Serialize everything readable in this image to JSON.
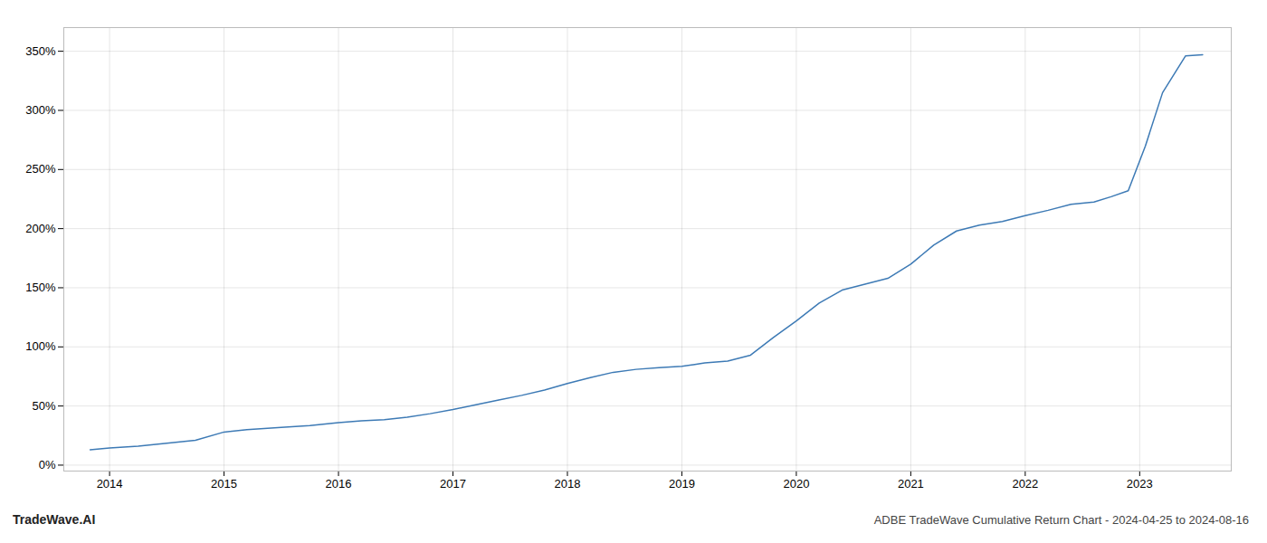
{
  "chart_data": {
    "type": "line",
    "title": "ADBE TradeWave Cumulative Return Chart - 2024-04-25 to 2024-08-16",
    "annotations": [
      "TradeWave.AI"
    ],
    "color": "#3d7ab5",
    "grid": true,
    "x": [
      2013.83,
      2014.0,
      2014.25,
      2014.5,
      2014.75,
      2015.0,
      2015.2,
      2015.5,
      2015.75,
      2016.0,
      2016.2,
      2016.4,
      2016.6,
      2016.8,
      2017.0,
      2017.2,
      2017.4,
      2017.6,
      2017.8,
      2018.0,
      2018.2,
      2018.4,
      2018.6,
      2018.8,
      2019.0,
      2019.1,
      2019.2,
      2019.4,
      2019.6,
      2019.8,
      2020.0,
      2020.2,
      2020.4,
      2020.6,
      2020.8,
      2021.0,
      2021.2,
      2021.4,
      2021.6,
      2021.8,
      2022.0,
      2022.2,
      2022.4,
      2022.6,
      2022.75,
      2022.9,
      2023.05,
      2023.2,
      2023.4,
      2023.55
    ],
    "values": [
      13.0,
      14.5,
      16.0,
      18.5,
      21.0,
      28.0,
      30.0,
      32.0,
      33.5,
      36.0,
      37.5,
      38.5,
      40.5,
      43.5,
      47.0,
      51.0,
      55.0,
      59.0,
      63.5,
      69.0,
      74.0,
      78.5,
      81.0,
      82.5,
      83.5,
      85.0,
      86.5,
      88.0,
      93.0,
      108.0,
      122.0,
      137.0,
      148.0,
      153.0,
      158.0,
      170.0,
      186.0,
      198.0,
      203.0,
      206.0,
      211.0,
      215.5,
      220.5,
      222.5,
      227.0,
      232.0,
      270.0,
      315.0,
      346.0,
      347.0
    ],
    "xlim": [
      2013.6,
      2023.8
    ],
    "xticks": [
      2014,
      2015,
      2016,
      2017,
      2018,
      2019,
      2020,
      2021,
      2022,
      2023
    ],
    "ylim": [
      -5,
      370
    ],
    "yticks": [
      {
        "value": 0,
        "label": "0%"
      },
      {
        "value": 50,
        "label": "50%"
      },
      {
        "value": 100,
        "label": "100%"
      },
      {
        "value": 150,
        "label": "150%"
      },
      {
        "value": 200,
        "label": "200%"
      },
      {
        "value": 250,
        "label": "250%"
      },
      {
        "value": 300,
        "label": "300%"
      },
      {
        "value": 350,
        "label": "350%"
      }
    ]
  }
}
